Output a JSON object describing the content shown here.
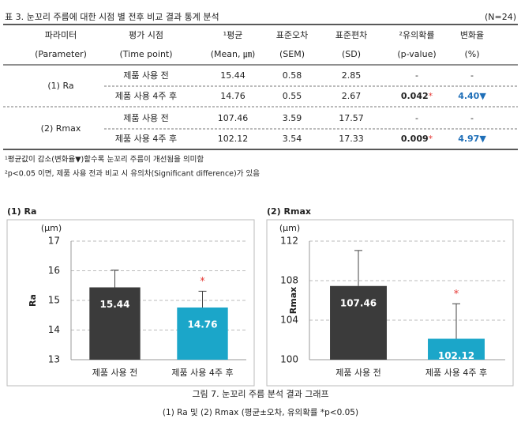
{
  "table": {
    "caption": "표 3. 눈꼬리 주름에 대한 시점 별 전후 비교 결과 통계 분석",
    "n": "(N=24)",
    "header": [
      [
        "파라미터",
        "평가 시점",
        "¹평균",
        "표준오차",
        "표준편차",
        "²유의확률",
        "변화율"
      ],
      [
        "(Parameter)",
        "(Time point)",
        "(Mean, ㎛)",
        "(SEM)",
        "(SD)",
        "(p-value)",
        "(%)"
      ]
    ],
    "groups": [
      {
        "parameter": "(1) Ra",
        "rows": [
          {
            "time": "제품 사용 전",
            "mean": "15.44",
            "sem": "0.58",
            "sd": "2.85",
            "p": "-",
            "change": "-"
          },
          {
            "time": "제품 사용 4주 후",
            "mean": "14.76",
            "sem": "0.55",
            "sd": "2.67",
            "p": "0.042",
            "p_mark": "*",
            "change": "4.40",
            "change_mark": "▼"
          }
        ]
      },
      {
        "parameter": "(2) Rmax",
        "rows": [
          {
            "time": "제품 사용 전",
            "mean": "107.46",
            "sem": "3.59",
            "sd": "17.57",
            "p": "-",
            "change": "-"
          },
          {
            "time": "제품 사용 4주 후",
            "mean": "102.12",
            "sem": "3.54",
            "sd": "17.33",
            "p": "0.009",
            "p_mark": "*",
            "change": "4.97",
            "change_mark": "▼"
          }
        ]
      }
    ],
    "footnotes": [
      "¹평균값이 감소(변화율▼)할수록 눈꼬리 주름이 개선됨을 의미함",
      "²p<0.05 이면, 제품 사용 전과 비교 시 유의차(Significant difference)가 있음"
    ]
  },
  "chart_data": [
    {
      "type": "bar",
      "title": "(1) Ra",
      "unit": "(μm)",
      "ylabel": "Ra",
      "categories": [
        "제품 사용 전",
        "제품 사용 4주 후"
      ],
      "values": [
        15.44,
        14.76
      ],
      "errors": [
        0.58,
        0.55
      ],
      "colors": [
        "#3b3b3b",
        "#1ba6c9"
      ],
      "significance": [
        null,
        "*"
      ],
      "ylim": [
        13,
        17
      ],
      "yticks": [
        13,
        14,
        15,
        16,
        17
      ],
      "grid": true
    },
    {
      "type": "bar",
      "title": "(2) Rmax",
      "unit": "(μm)",
      "ylabel": "Rmax",
      "categories": [
        "제품 사용 전",
        "제품 사용 4주 후"
      ],
      "values": [
        107.46,
        102.12
      ],
      "errors": [
        3.59,
        3.54
      ],
      "colors": [
        "#3b3b3b",
        "#1ba6c9"
      ],
      "significance": [
        null,
        "*"
      ],
      "ylim": [
        100,
        112
      ],
      "yticks": [
        100,
        104,
        108,
        112
      ],
      "grid": true
    }
  ],
  "figure_caption": [
    "그림 7. 눈꼬리 주름 분석 결과 그래프",
    "(1) Ra 및 (2) Rmax (평균±오차, 유의확률 *p<0.05)"
  ]
}
